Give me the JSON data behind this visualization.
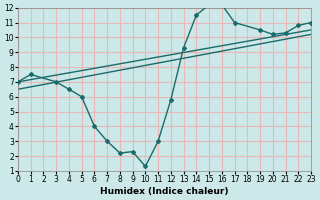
{
  "xlabel": "Humidex (Indice chaleur)",
  "background_color": "#cce8e8",
  "grid_color": "#e8b8b8",
  "line_color": "#1a6b6b",
  "xlim": [
    0,
    23
  ],
  "ylim": [
    1,
    12
  ],
  "xticks": [
    0,
    1,
    2,
    3,
    4,
    5,
    6,
    7,
    8,
    9,
    10,
    11,
    12,
    13,
    14,
    15,
    16,
    17,
    18,
    19,
    20,
    21,
    22,
    23
  ],
  "yticks": [
    1,
    2,
    3,
    4,
    5,
    6,
    7,
    8,
    9,
    10,
    11,
    12
  ],
  "curve_x": [
    0,
    1,
    3,
    4,
    5,
    6,
    7,
    8,
    9,
    10,
    11,
    12,
    13,
    14,
    15,
    16,
    17,
    19,
    20,
    21,
    22,
    23
  ],
  "curve_y": [
    7.0,
    7.5,
    7.0,
    6.5,
    6.0,
    4.0,
    3.0,
    2.2,
    2.3,
    1.3,
    3.0,
    5.8,
    9.3,
    11.5,
    12.2,
    12.2,
    11.0,
    10.5,
    10.2,
    10.3,
    10.8,
    11.0
  ],
  "line1_x": [
    0,
    23
  ],
  "line1_y": [
    7.0,
    10.5
  ],
  "line2_x": [
    0,
    23
  ],
  "line2_y": [
    6.5,
    10.2
  ]
}
